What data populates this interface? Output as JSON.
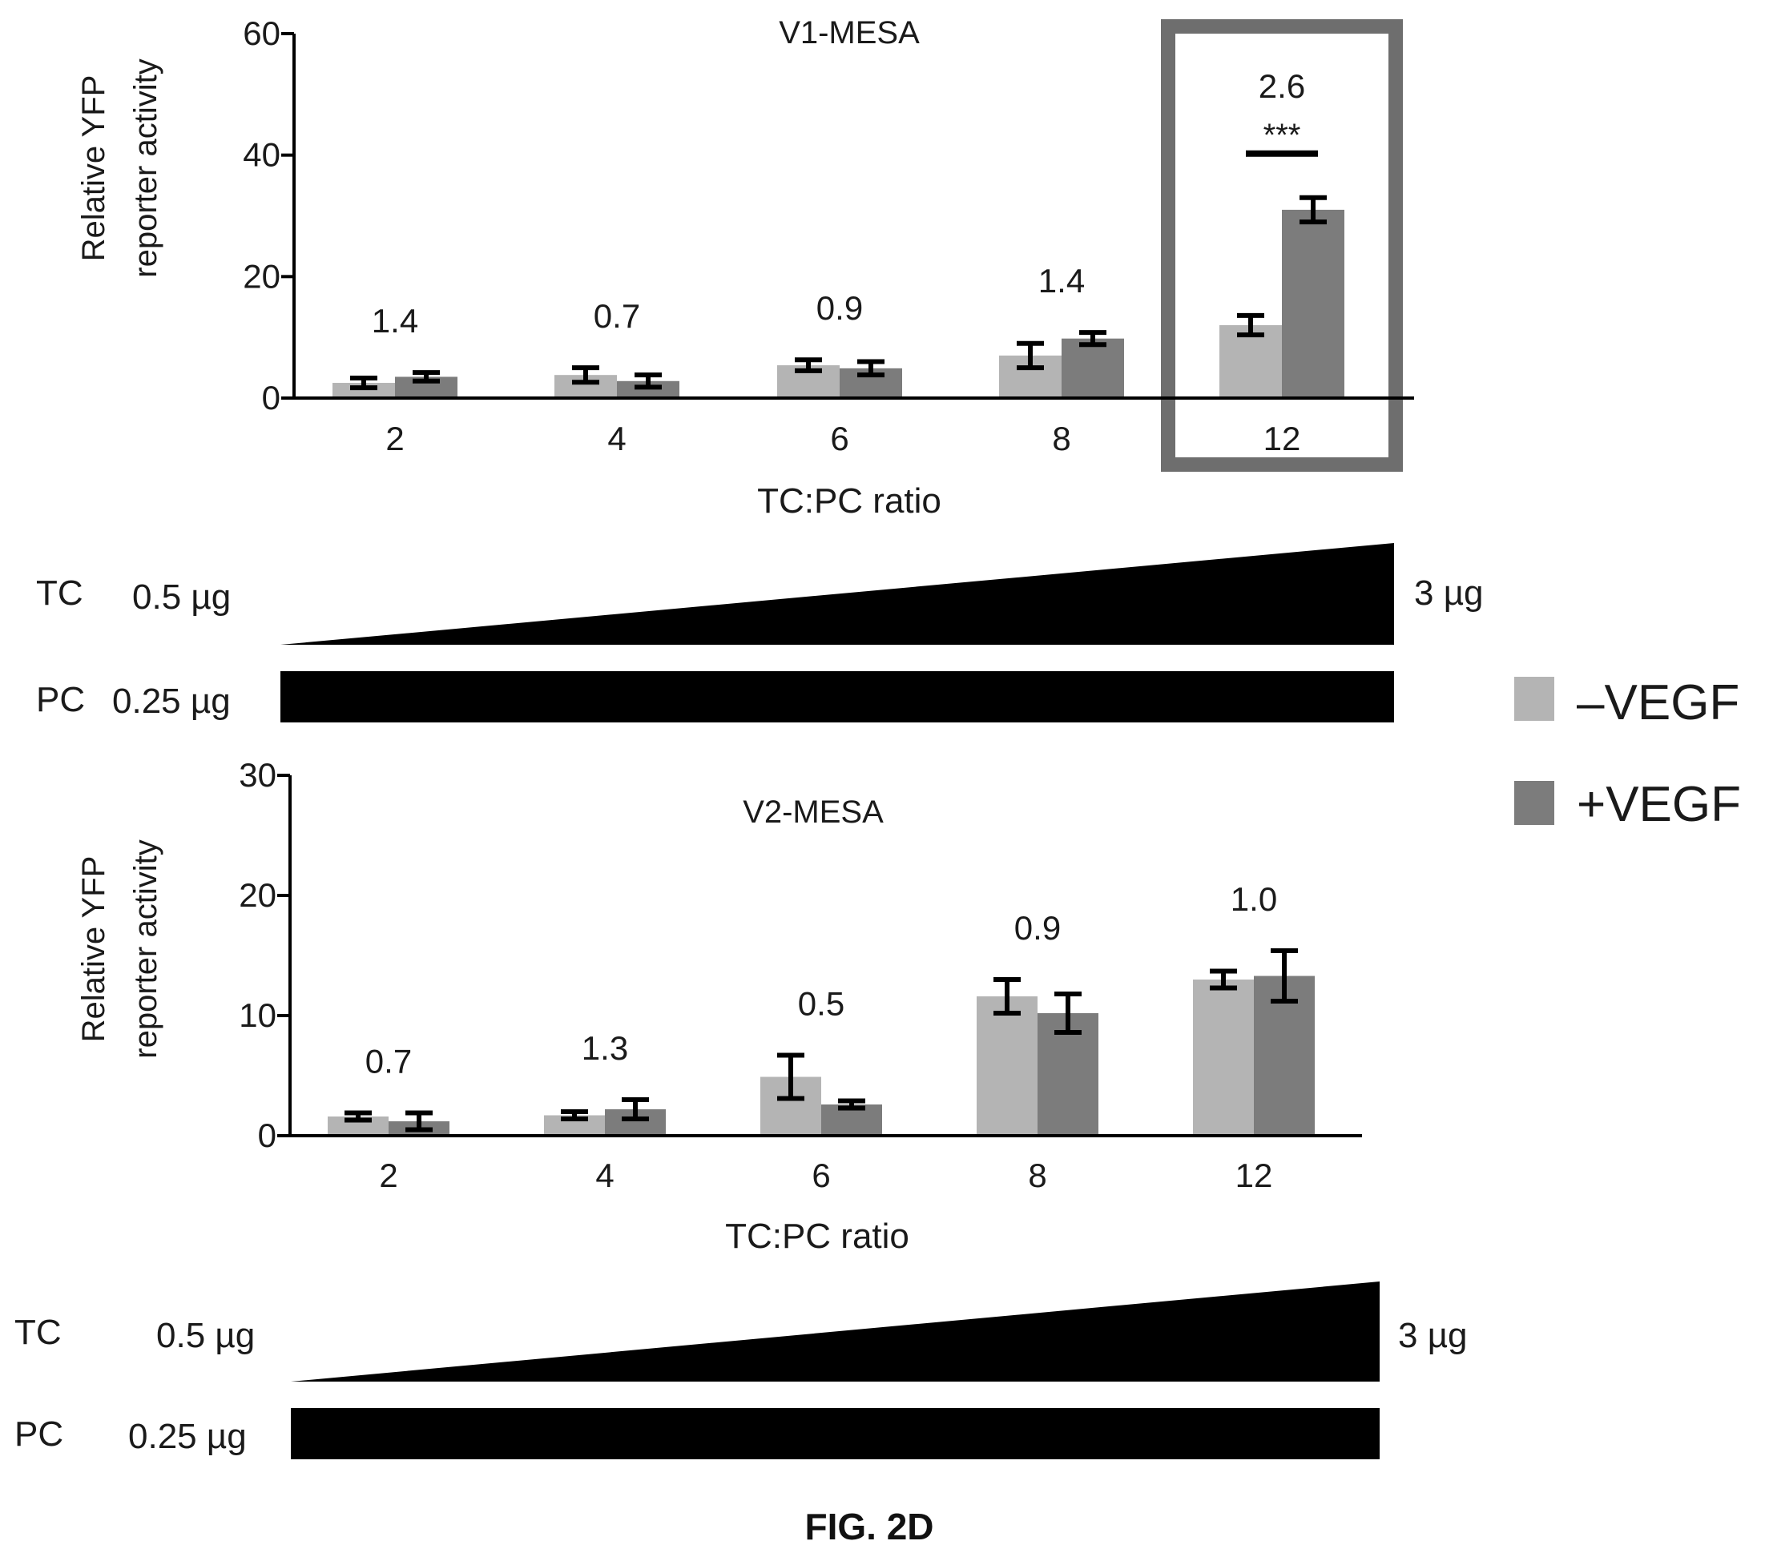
{
  "figure_label": "FIG. 2D",
  "colors": {
    "minus_vegf": "#b4b4b4",
    "plus_vegf": "#7c7c7c",
    "axis": "#000000",
    "highlight_box": "#6e6e6e",
    "gradient_fill": "#000000"
  },
  "legend": [
    {
      "label": "–VEGF",
      "color_key": "minus_vegf"
    },
    {
      "label": "+VEGF",
      "color_key": "plus_vegf"
    }
  ],
  "panels": [
    {
      "tc_row": {
        "label": "TC",
        "start": "0.5 µg",
        "end": "3 µg"
      },
      "pc_row": {
        "label": "PC",
        "amount": "0.25 µg"
      }
    },
    {
      "tc_row": {
        "label": "TC",
        "start": "0.5 µg",
        "end": "3 µg"
      },
      "pc_row": {
        "label": "PC",
        "amount": "0.25 µg"
      }
    }
  ],
  "chart_data": [
    {
      "type": "bar",
      "title": "V1-MESA",
      "xlabel": "TC:PC ratio",
      "ylabel": [
        "Relative YFP",
        "reporter activity"
      ],
      "ylim": [
        0,
        60
      ],
      "yticks": [
        0,
        20,
        40,
        60
      ],
      "categories": [
        "2",
        "4",
        "6",
        "8",
        "12"
      ],
      "series": [
        {
          "name": "–VEGF",
          "values": [
            2.5,
            3.8,
            5.4,
            7.0,
            12.0
          ],
          "errors": [
            0.8,
            1.2,
            0.9,
            2.0,
            1.6
          ]
        },
        {
          "name": "+VEGF",
          "values": [
            3.5,
            2.8,
            4.9,
            9.8,
            31.0
          ],
          "errors": [
            0.7,
            1.0,
            1.1,
            1.0,
            2.0
          ]
        }
      ],
      "fold_labels": [
        "1.4",
        "0.7",
        "0.9",
        "1.4",
        "2.6"
      ],
      "significance": {
        "category": "12",
        "label": "***"
      },
      "highlight_category": "12"
    },
    {
      "type": "bar",
      "title": "V2-MESA",
      "xlabel": "TC:PC ratio",
      "ylabel": [
        "Relative YFP",
        "reporter activity"
      ],
      "ylim": [
        0,
        30
      ],
      "yticks": [
        0,
        10,
        20,
        30
      ],
      "categories": [
        "2",
        "4",
        "6",
        "8",
        "12"
      ],
      "series": [
        {
          "name": "–VEGF",
          "values": [
            1.6,
            1.7,
            4.9,
            11.6,
            13.0
          ],
          "errors": [
            0.3,
            0.3,
            1.8,
            1.4,
            0.7
          ]
        },
        {
          "name": "+VEGF",
          "values": [
            1.2,
            2.2,
            2.6,
            10.2,
            13.3
          ],
          "errors": [
            0.7,
            0.8,
            0.3,
            1.6,
            2.1
          ]
        }
      ],
      "fold_labels": [
        "0.7",
        "1.3",
        "0.5",
        "0.9",
        "1.0"
      ]
    }
  ]
}
